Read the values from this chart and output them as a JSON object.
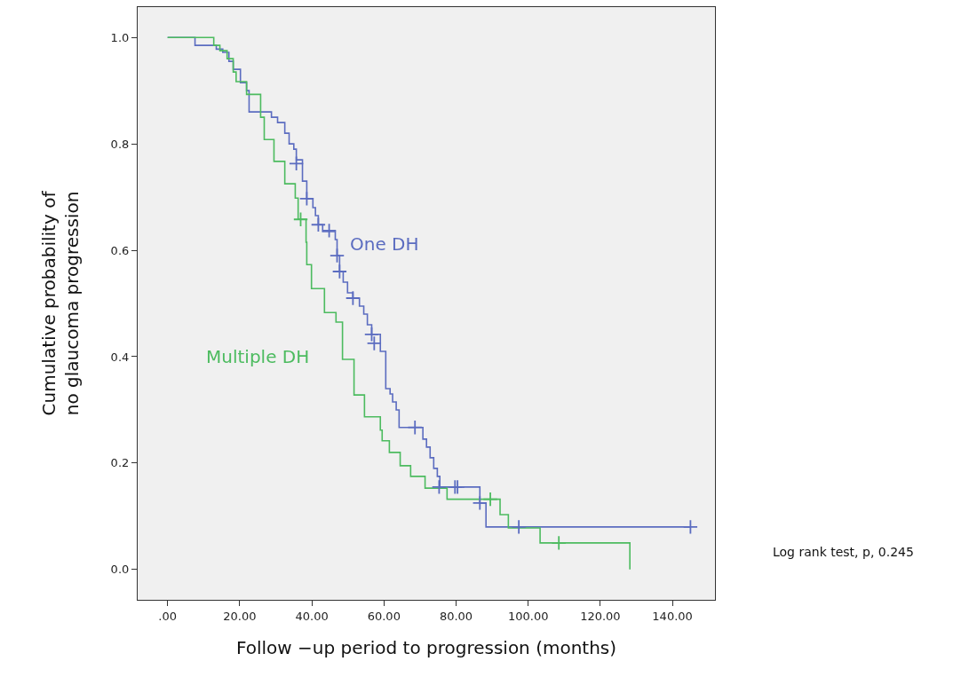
{
  "chart_data": {
    "type": "step",
    "xlabel": "Follow −up period to progression (months)",
    "ylabel": "Cumulative probability of\nno glaucoma progression",
    "xlim": [
      -8.3,
      151.8
    ],
    "ylim": [
      -0.057,
      1.057
    ],
    "xticks": [
      {
        "value": 0,
        "label": ".00"
      },
      {
        "value": 20,
        "label": "20.00"
      },
      {
        "value": 40,
        "label": "40.00"
      },
      {
        "value": 60,
        "label": "60.00"
      },
      {
        "value": 80,
        "label": "80.00"
      },
      {
        "value": 100,
        "label": "100.00"
      },
      {
        "value": 120,
        "label": "120.00"
      },
      {
        "value": 140,
        "label": "140.00"
      }
    ],
    "yticks": [
      {
        "value": 0,
        "label": "0.0"
      },
      {
        "value": 0.2,
        "label": "0.2"
      },
      {
        "value": 0.4,
        "label": "0.4"
      },
      {
        "value": 0.6,
        "label": "0.6"
      },
      {
        "value": 0.8,
        "label": "0.8"
      },
      {
        "value": 1.0,
        "label": "1.0"
      }
    ],
    "grid": false,
    "legend": false,
    "series": [
      {
        "name": "One DH",
        "color": "#5b6cc0",
        "x": [
          0,
          7.6,
          13.5,
          15.3,
          17,
          18.2,
          20.2,
          21.9,
          22.6,
          28.8,
          30.5,
          32.5,
          33.7,
          35,
          35.7,
          37.4,
          38.6,
          40.3,
          41,
          41.8,
          43,
          46.5,
          47,
          47.7,
          48.7,
          49.9,
          51.4,
          53.2,
          54.4,
          55.4,
          56.6,
          59,
          60.5,
          61.7,
          62.4,
          63.4,
          64.2,
          68.6,
          70.8,
          71.8,
          72.8,
          73.8,
          74.8,
          75.5,
          86.6,
          88.3,
          145
        ],
        "values": [
          1.0,
          0.985,
          0.978,
          0.972,
          0.955,
          0.94,
          0.915,
          0.9,
          0.86,
          0.85,
          0.84,
          0.82,
          0.8,
          0.79,
          0.77,
          0.73,
          0.697,
          0.68,
          0.665,
          0.648,
          0.635,
          0.62,
          0.59,
          0.56,
          0.54,
          0.52,
          0.51,
          0.495,
          0.48,
          0.46,
          0.442,
          0.41,
          0.34,
          0.33,
          0.315,
          0.3,
          0.267,
          0.267,
          0.245,
          0.23,
          0.21,
          0.19,
          0.175,
          0.155,
          0.125,
          0.08,
          0.08
        ]
      },
      {
        "name": "Multiple DH",
        "color": "#4cbb5f",
        "x": [
          0,
          12.8,
          14.5,
          16.5,
          18.2,
          19,
          21.9,
          25.8,
          26.8,
          29.5,
          32.5,
          35.4,
          36.2,
          38.4,
          38.6,
          39.9,
          43.5,
          46.7,
          48.5,
          51.7,
          54.6,
          59,
          59.5,
          61.5,
          64.5,
          67.4,
          71.4,
          77.5,
          92.2,
          94.5,
          103.3,
          128.2
        ],
        "values": [
          1.0,
          0.985,
          0.975,
          0.96,
          0.935,
          0.917,
          0.893,
          0.85,
          0.808,
          0.767,
          0.725,
          0.698,
          0.658,
          0.615,
          0.573,
          0.528,
          0.483,
          0.465,
          0.395,
          0.328,
          0.287,
          0.262,
          0.242,
          0.22,
          0.195,
          0.175,
          0.153,
          0.132,
          0.103,
          0.078,
          0.05,
          0.0
        ]
      },
      {
        "type": "scatter",
        "marker": "cross",
        "color": "#5b6cc0",
        "x": [
          35.7,
          38.6,
          41.8,
          44.8,
          47,
          47.7,
          51.4,
          56.6,
          57.3,
          68.6,
          75.3,
          79.7,
          80.4,
          86.6,
          97.4,
          145
        ],
        "values": [
          0.763,
          0.697,
          0.648,
          0.637,
          0.59,
          0.56,
          0.51,
          0.442,
          0.425,
          0.267,
          0.155,
          0.155,
          0.155,
          0.125,
          0.08,
          0.08
        ]
      },
      {
        "type": "scatter",
        "marker": "cross",
        "color": "#4cbb5f",
        "x": [
          36.9,
          89.5,
          108.5
        ],
        "values": [
          0.658,
          0.132,
          0.05
        ]
      }
    ],
    "annotations": [
      "Log rank test, p, 0.245"
    ]
  }
}
